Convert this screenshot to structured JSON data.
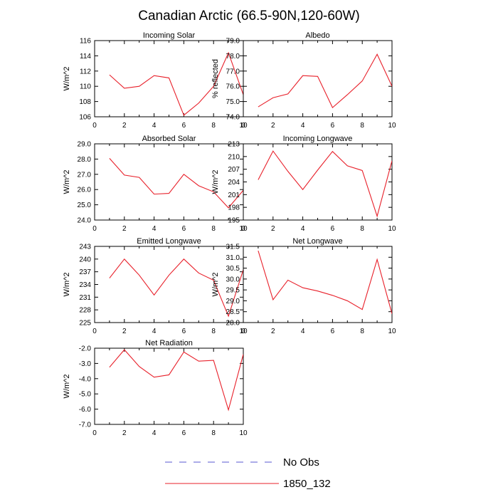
{
  "page_title": "Canadian Arctic (66.5-90N,120-60W)",
  "legend": {
    "entries": [
      {
        "label": "No Obs",
        "color": "#5a5ad0",
        "style": "dashed"
      },
      {
        "label": "1850_132",
        "color": "#e8202a",
        "style": "solid"
      }
    ]
  },
  "line_color": "#e8202a",
  "chart_data": [
    {
      "type": "line",
      "title": "Incoming Solar",
      "ylabel": "W/m^2",
      "xlim": [
        0,
        10
      ],
      "ylim": [
        106,
        116
      ],
      "xticks": [
        "0",
        "2",
        "4",
        "6",
        "8",
        "10"
      ],
      "yticks": [
        "106",
        "108",
        "110",
        "112",
        "114",
        "116"
      ],
      "x": [
        1,
        2,
        3,
        4,
        5,
        6,
        7,
        8,
        9,
        10
      ],
      "y": [
        111.5,
        109.75,
        110.0,
        111.4,
        111.1,
        106.2,
        107.8,
        110.0,
        114.4,
        108.9
      ]
    },
    {
      "type": "line",
      "title": "Albedo",
      "ylabel": "% reflected",
      "xlim": [
        0,
        10
      ],
      "ylim": [
        74.0,
        79.0
      ],
      "xticks": [
        "0",
        "2",
        "4",
        "6",
        "8",
        "10"
      ],
      "yticks": [
        "74.0",
        "75.0",
        "76.0",
        "77.0",
        "78.0",
        "79.0"
      ],
      "x": [
        1,
        2,
        3,
        4,
        5,
        6,
        7,
        8,
        9,
        10
      ],
      "y": [
        74.65,
        75.25,
        75.5,
        76.7,
        76.65,
        74.6,
        75.45,
        76.35,
        78.1,
        76.0
      ]
    },
    {
      "type": "line",
      "title": "Absorbed Solar",
      "ylabel": "W/m^2",
      "xlim": [
        0,
        10
      ],
      "ylim": [
        24.0,
        29.0
      ],
      "xticks": [
        "0",
        "2",
        "4",
        "6",
        "8",
        "10"
      ],
      "yticks": [
        "24.0",
        "25.0",
        "26.0",
        "27.0",
        "28.0",
        "29.0"
      ],
      "x": [
        1,
        2,
        3,
        4,
        5,
        6,
        7,
        8,
        9,
        10
      ],
      "y": [
        28.05,
        26.95,
        26.8,
        25.7,
        25.75,
        27.0,
        26.25,
        25.85,
        24.8,
        25.95
      ]
    },
    {
      "type": "line",
      "title": "Incoming Longwave",
      "ylabel": "W/m^2",
      "xlim": [
        0,
        10
      ],
      "ylim": [
        195,
        213
      ],
      "xticks": [
        "0",
        "2",
        "4",
        "6",
        "8",
        "10"
      ],
      "yticks": [
        "195",
        "198",
        "201",
        "204",
        "207",
        "210",
        "213"
      ],
      "x": [
        1,
        2,
        3,
        4,
        5,
        6,
        7,
        8,
        9,
        10
      ],
      "y": [
        204.5,
        211.3,
        206.5,
        202.2,
        206.8,
        211.2,
        207.8,
        206.7,
        195.9,
        209.0
      ]
    },
    {
      "type": "line",
      "title": "Emitted Longwave",
      "ylabel": "W/m^2",
      "xlim": [
        0,
        10
      ],
      "ylim": [
        225,
        243
      ],
      "xticks": [
        "0",
        "2",
        "4",
        "6",
        "8",
        "10"
      ],
      "yticks": [
        "225",
        "228",
        "231",
        "234",
        "237",
        "240",
        "243"
      ],
      "x": [
        1,
        2,
        3,
        4,
        5,
        6,
        7,
        8,
        9,
        10
      ],
      "y": [
        235.5,
        240.0,
        236.2,
        231.5,
        236.2,
        240.0,
        236.7,
        235.0,
        226.5,
        237.5
      ]
    },
    {
      "type": "line",
      "title": "Net Longwave",
      "ylabel": "W/m^2",
      "xlim": [
        0,
        10
      ],
      "ylim": [
        28.0,
        31.5
      ],
      "xticks": [
        "0",
        "2",
        "4",
        "6",
        "8",
        "10"
      ],
      "yticks": [
        "28.0",
        "28.5",
        "29.0",
        "29.5",
        "30.0",
        "30.5",
        "31.0",
        "31.5"
      ],
      "x": [
        1,
        2,
        3,
        4,
        5,
        6,
        7,
        8,
        9,
        10
      ],
      "y": [
        31.3,
        29.05,
        29.95,
        29.6,
        29.45,
        29.25,
        29.0,
        28.6,
        30.9,
        28.4
      ]
    },
    {
      "type": "line",
      "title": "Net Radiation",
      "ylabel": "W/m^2",
      "xlim": [
        0,
        10
      ],
      "ylim": [
        -7.0,
        -2.0
      ],
      "xticks": [
        "0",
        "2",
        "4",
        "6",
        "8",
        "10"
      ],
      "yticks": [
        "-7.0",
        "-6.0",
        "-5.0",
        "-4.0",
        "-3.0",
        "-2.0"
      ],
      "x": [
        1,
        2,
        3,
        4,
        5,
        6,
        7,
        8,
        9,
        10
      ],
      "y": [
        -3.25,
        -2.1,
        -3.2,
        -3.9,
        -3.75,
        -2.25,
        -2.85,
        -2.8,
        -6.05,
        -2.4
      ]
    }
  ]
}
